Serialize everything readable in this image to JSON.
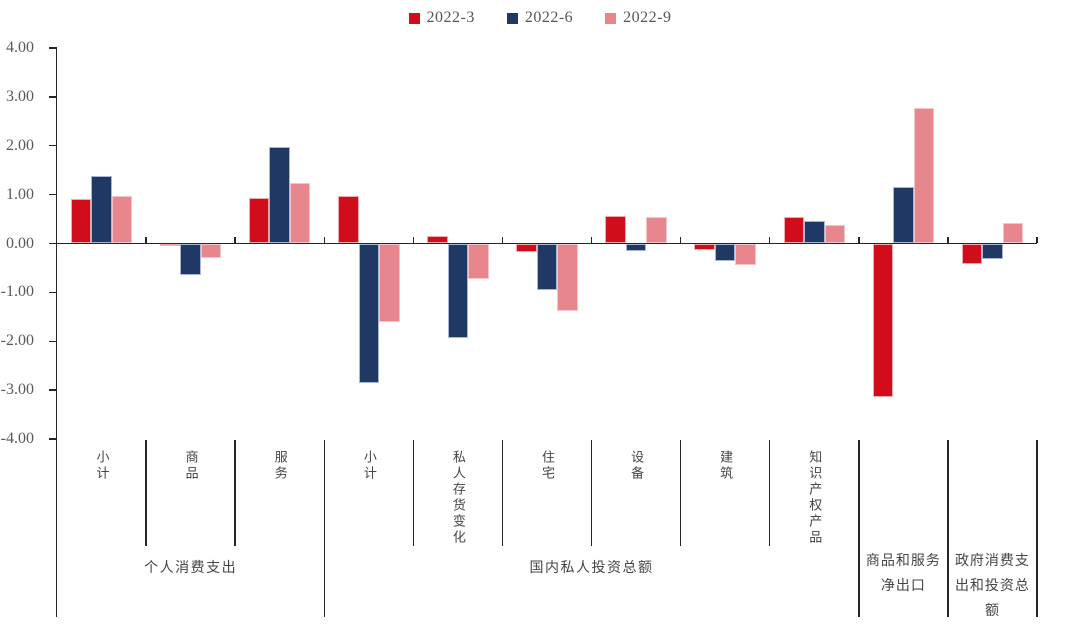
{
  "legend": [
    {
      "label": "2022-3",
      "color": "#D20D1B",
      "border": "#EDABAD"
    },
    {
      "label": "2022-6",
      "color": "#203864",
      "border": "#A9B7D5"
    },
    {
      "label": "2022-9",
      "color": "#E8868D",
      "border": "#F3C5C8"
    }
  ],
  "chart_data": {
    "type": "bar",
    "title": "",
    "xlabel": "",
    "ylabel": "",
    "ylim": [
      -4,
      4
    ],
    "grid": false,
    "legend_position": "top-center",
    "y_axis": {
      "tick_labels": [
        "4.00",
        "3.00",
        "2.00",
        "1.00",
        "0.00",
        "-1.00",
        "-2.00",
        "-3.00",
        "-4.00"
      ],
      "tick_values": [
        4,
        3,
        2,
        1,
        0,
        -1,
        -2,
        -3,
        -4
      ]
    },
    "categories": [
      "小计",
      "商品",
      "服务",
      "小计",
      "私人存货变化",
      "住宅",
      "设备",
      "建筑",
      "知识产权产品",
      "商品和服务净出口",
      "政府消费支出和投资总额"
    ],
    "vertical_axis_labels": [
      {
        "group": 0,
        "text": "小计"
      },
      {
        "group": 1,
        "text": "商品"
      },
      {
        "group": 2,
        "text": "服务"
      },
      {
        "group": 3,
        "text": "小计"
      },
      {
        "group": 4,
        "text": "私人存货变化"
      },
      {
        "group": 5,
        "text": "住宅"
      },
      {
        "group": 6,
        "text": "设备"
      },
      {
        "group": 7,
        "text": "建筑"
      },
      {
        "group": 8,
        "text": "知识产权产品"
      }
    ],
    "group_labels": [
      {
        "text": "个人消费支出",
        "from": 0,
        "to": 2
      },
      {
        "text": "国内私人投资总额",
        "from": 3,
        "to": 8
      },
      {
        "text": "商品和服务净出口",
        "from": 9,
        "to": 9
      },
      {
        "text": "政府消费支出和投资总额",
        "from": 10,
        "to": 10
      }
    ],
    "series": [
      {
        "name": "2022-3",
        "color": "#D20D1B",
        "border": "#EDABAD",
        "values": [
          0.91,
          -0.03,
          0.93,
          0.97,
          0.15,
          -0.15,
          0.56,
          -0.12,
          0.55,
          -3.13,
          -0.4
        ]
      },
      {
        "name": "2022-6",
        "color": "#203864",
        "border": "#A9B7D5",
        "values": [
          1.38,
          -0.62,
          1.97,
          -2.83,
          -1.91,
          -0.93,
          -0.14,
          -0.35,
          0.45,
          1.16,
          -0.31
        ]
      },
      {
        "name": "2022-9",
        "color": "#E8868D",
        "border": "#F3C5C8",
        "values": [
          0.97,
          -0.28,
          1.24,
          -1.59,
          -0.71,
          -1.37,
          0.55,
          -0.43,
          0.37,
          2.77,
          0.42
        ]
      }
    ]
  },
  "colors": {
    "axis": "#262626",
    "tick_text": "#595959",
    "label_text": "#454545"
  }
}
